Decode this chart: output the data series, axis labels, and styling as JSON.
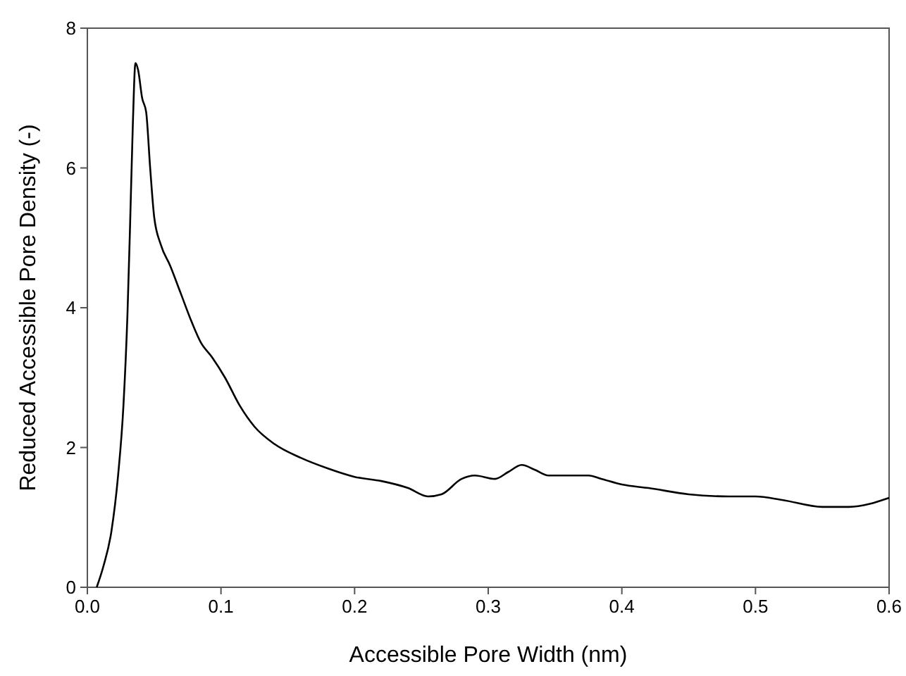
{
  "chart_data": {
    "type": "line",
    "xlabel": "Accessible Pore Width (nm)",
    "ylabel": "Reduced Accessible Pore Density (-)",
    "xlim": [
      0,
      0.6
    ],
    "ylim": [
      0,
      8
    ],
    "xticks": [
      {
        "value": 0,
        "label": "0.0"
      },
      0.1,
      0.2,
      0.3,
      0.4,
      0.5,
      0.6
    ],
    "yticks": [
      0,
      2,
      4,
      6,
      8
    ],
    "grid": false,
    "marker": "none",
    "line_style": "solid",
    "series": [
      {
        "color": "#000000",
        "x": [
          0.007,
          0.012,
          0.018,
          0.023,
          0.027,
          0.03,
          0.032,
          0.034,
          0.036,
          0.038,
          0.041,
          0.044,
          0.047,
          0.05,
          0.055,
          0.062,
          0.07,
          0.078,
          0.085,
          0.093,
          0.103,
          0.114,
          0.125,
          0.14,
          0.16,
          0.18,
          0.2,
          0.22,
          0.24,
          0.255,
          0.265,
          0.28,
          0.29,
          0.305,
          0.315,
          0.325,
          0.335,
          0.345,
          0.36,
          0.375,
          0.385,
          0.4,
          0.42,
          0.45,
          0.48,
          0.5,
          0.52,
          0.55,
          0.57,
          0.6
        ],
        "values": [
          0,
          0.3,
          0.8,
          1.6,
          2.6,
          3.9,
          5.2,
          6.6,
          7.5,
          7.4,
          7.0,
          6.8,
          6.0,
          5.3,
          4.9,
          4.6,
          4.2,
          3.8,
          3.5,
          3.3,
          3.0,
          2.6,
          2.3,
          2.05,
          1.85,
          1.7,
          1.58,
          1.52,
          1.42,
          1.3,
          1.33,
          1.55,
          1.6,
          1.55,
          1.65,
          1.75,
          1.68,
          1.6,
          1.6,
          1.6,
          1.55,
          1.47,
          1.42,
          1.33,
          1.3,
          1.3,
          1.25,
          1.15,
          1.15,
          1.28
        ]
      }
    ]
  }
}
